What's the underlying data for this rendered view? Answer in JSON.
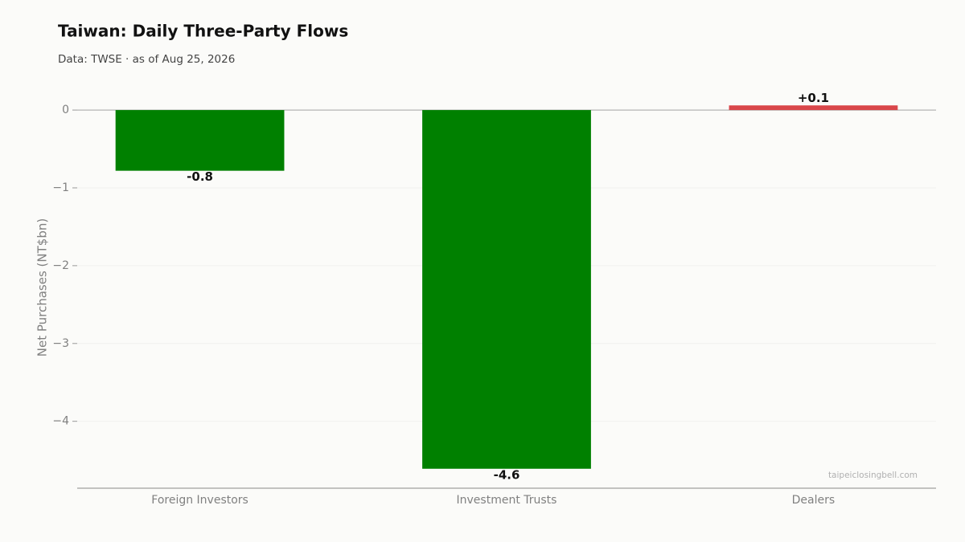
{
  "chart_data": {
    "type": "bar",
    "title": "Taiwan: Daily Three-Party Flows",
    "subtitle": "Data: TWSE · as of Aug 25, 2026",
    "y_label": "Net Purchases (NT$bn)",
    "watermark": "taipeiclosingbell.com",
    "categories": [
      "Foreign Investors",
      "Investment Trusts",
      "Dealers"
    ],
    "values": [
      -0.78,
      -4.61,
      0.06
    ],
    "value_labels": [
      "-0.8",
      "-4.6",
      "+0.1"
    ],
    "colors": [
      "#008000",
      "#008000",
      "#d9464a"
    ],
    "ylim": [
      -4.86,
      0.3
    ],
    "yticks": [
      0,
      {
        "value": -1,
        "label": "−1"
      },
      {
        "value": -2,
        "label": "−2"
      },
      {
        "value": -3,
        "label": "−3"
      },
      {
        "value": -4,
        "label": "−4"
      }
    ],
    "grid": true
  }
}
